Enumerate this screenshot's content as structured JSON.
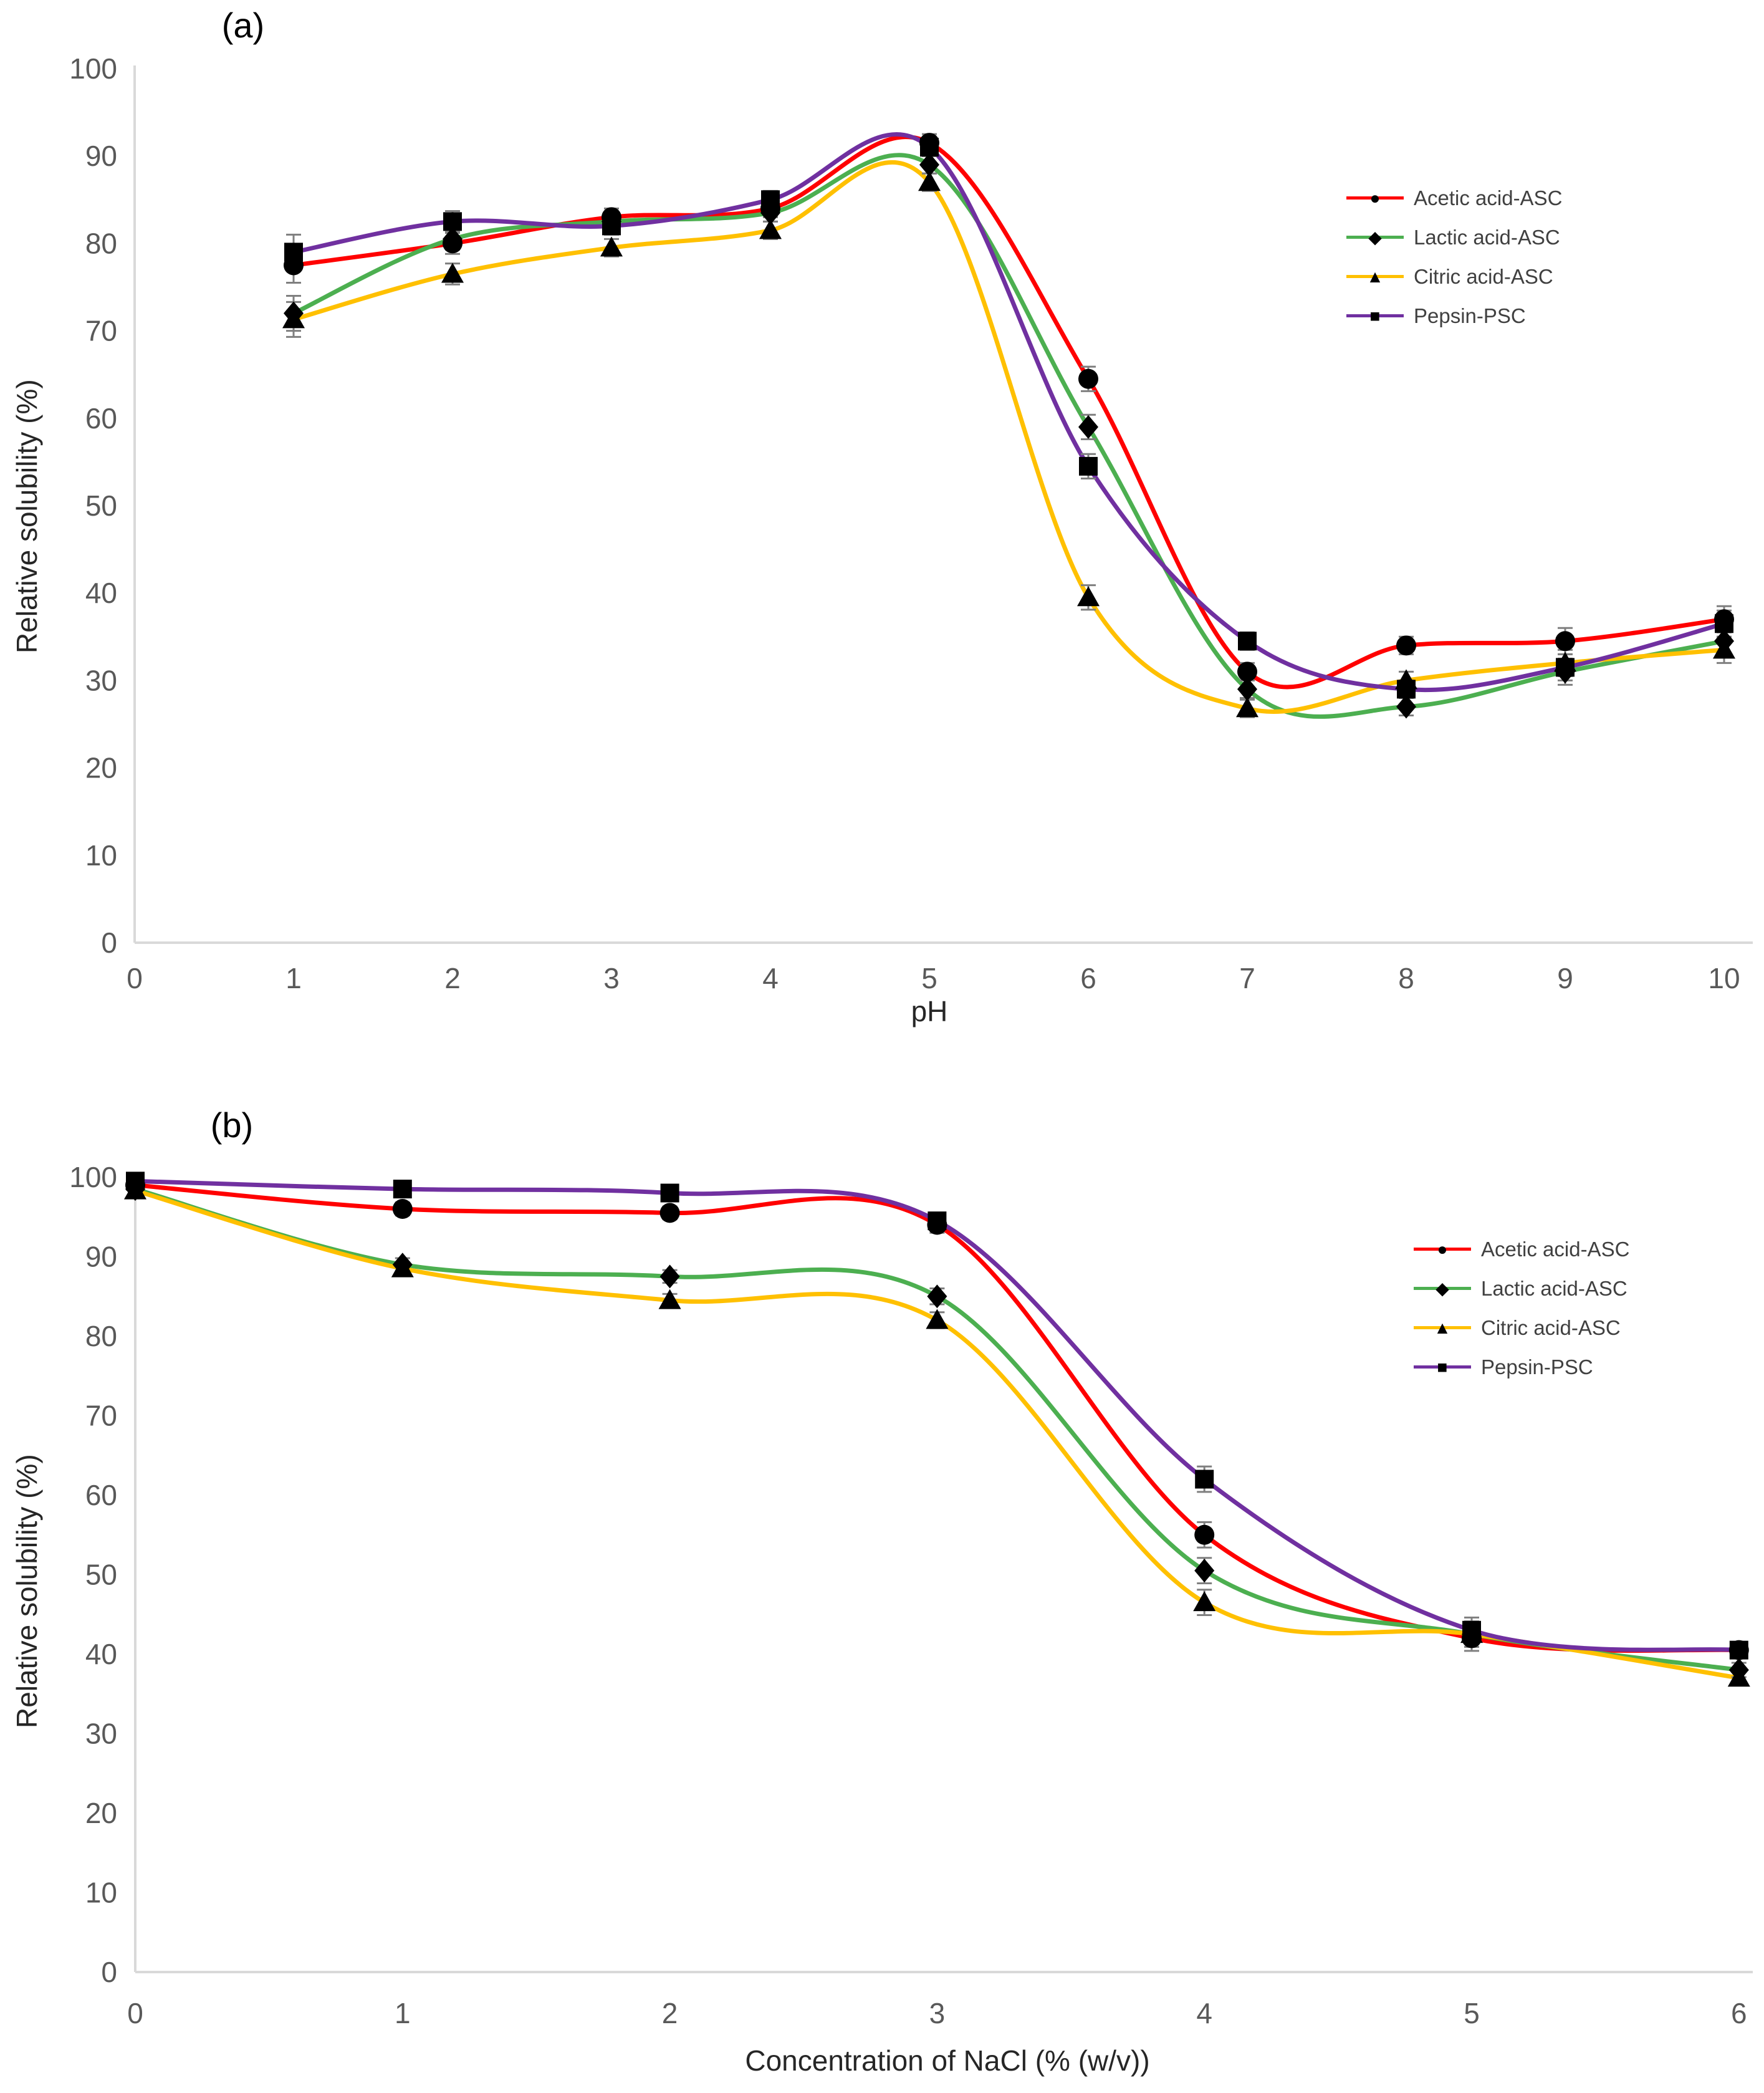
{
  "figure": {
    "background": "#ffffff",
    "axis_color": "#d9d9d9",
    "tick_label_color": "#595959",
    "marker_color": "#000000",
    "errorbar_color": "#7f7f7f"
  },
  "chart_data": [
    {
      "id": "a",
      "type": "line",
      "title": "(a)",
      "xlabel": "pH",
      "ylabel": "Relative solubility (%)",
      "xlim": [
        0,
        10
      ],
      "ylim": [
        0,
        100
      ],
      "grid": false,
      "legend_position": "right-inside",
      "xticks": [
        0,
        1,
        2,
        3,
        4,
        5,
        6,
        7,
        8,
        9,
        10
      ],
      "yticks": [
        0,
        10,
        20,
        30,
        40,
        50,
        60,
        70,
        80,
        90,
        100
      ],
      "x": [
        1,
        2,
        3,
        4,
        5,
        6,
        7,
        8,
        9,
        10
      ],
      "errorbars": [
        2,
        1.2,
        1,
        1,
        1,
        1.4,
        1,
        1,
        1.5,
        1.5
      ],
      "series": [
        {
          "name": "Acetic acid-ASC",
          "color": "#ff0000",
          "marker": "circle",
          "values": [
            77.5,
            80,
            83,
            84,
            91.5,
            64.5,
            31,
            34,
            34.5,
            37
          ]
        },
        {
          "name": "Lactic acid-ASC",
          "color": "#4caf50",
          "marker": "diamond",
          "values": [
            72,
            80.5,
            82.5,
            83.5,
            89,
            59,
            29,
            27,
            31,
            34.5
          ]
        },
        {
          "name": "Citric acid-ASC",
          "color": "#ffc000",
          "marker": "triangle",
          "values": [
            71.3,
            76.5,
            79.5,
            81.5,
            87,
            39.5,
            26.8,
            30,
            32,
            33.5
          ]
        },
        {
          "name": "Pepsin-PSC",
          "color": "#7030a0",
          "marker": "square",
          "values": [
            79,
            82.5,
            82,
            85,
            91,
            54.5,
            34.5,
            29,
            31.5,
            36.5
          ]
        }
      ]
    },
    {
      "id": "b",
      "type": "line",
      "title": "(b)",
      "xlabel": "Concentration of NaCl (% (w/v))",
      "ylabel": "Relative solubility (%)",
      "xlim": [
        0,
        6
      ],
      "ylim": [
        0,
        100
      ],
      "grid": false,
      "legend_position": "right-inside",
      "xticks": [
        0,
        1,
        2,
        3,
        4,
        5,
        6
      ],
      "yticks": [
        0,
        10,
        20,
        30,
        40,
        50,
        60,
        70,
        80,
        90,
        100
      ],
      "x": [
        0,
        1,
        2,
        3,
        4,
        5,
        6
      ],
      "errorbars": [
        0.8,
        0.8,
        0.8,
        1,
        1.6,
        1.6,
        0.9
      ],
      "series": [
        {
          "name": "Acetic acid-ASC",
          "color": "#ff0000",
          "marker": "circle",
          "values": [
            99,
            96,
            95.5,
            94,
            55,
            42,
            40.5
          ]
        },
        {
          "name": "Lactic acid-ASC",
          "color": "#4caf50",
          "marker": "diamond",
          "values": [
            98.5,
            89,
            87.5,
            85,
            50.5,
            42.5,
            38
          ]
        },
        {
          "name": "Citric acid-ASC",
          "color": "#ffc000",
          "marker": "triangle",
          "values": [
            98.3,
            88.5,
            84.5,
            82,
            46.5,
            42.5,
            37
          ]
        },
        {
          "name": "Pepsin-PSC",
          "color": "#7030a0",
          "marker": "square",
          "values": [
            99.5,
            98.5,
            98,
            94.5,
            62,
            43,
            40.5
          ]
        }
      ]
    }
  ]
}
